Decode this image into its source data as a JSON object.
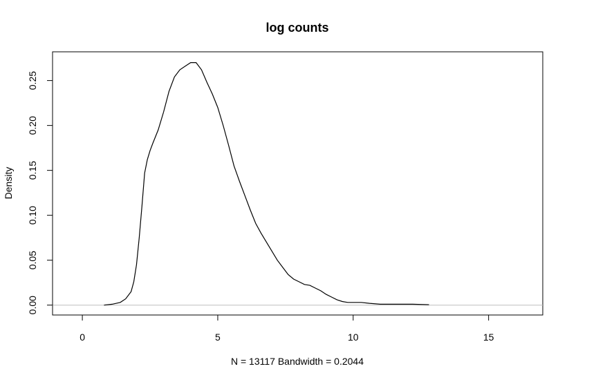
{
  "chart_data": {
    "type": "line",
    "title": "log counts",
    "xlabel": "N = 13117   Bandwidth = 0.2044",
    "ylabel": "Density",
    "xlim": [
      -1.1,
      17.0
    ],
    "ylim": [
      -0.011,
      0.282
    ],
    "x_ticks": [
      {
        "value": 0,
        "label": "0"
      },
      {
        "value": 5,
        "label": "5"
      },
      {
        "value": 10,
        "label": "10"
      },
      {
        "value": 15,
        "label": "15"
      }
    ],
    "y_ticks": [
      {
        "value": 0.0,
        "label": "0.00"
      },
      {
        "value": 0.05,
        "label": "0.05"
      },
      {
        "value": 0.1,
        "label": "0.10"
      },
      {
        "value": 0.15,
        "label": "0.15"
      },
      {
        "value": 0.2,
        "label": "0.20"
      },
      {
        "value": 0.25,
        "label": "0.25"
      }
    ],
    "baseline": {
      "value": 0,
      "color": "#bebebe"
    },
    "grid": false,
    "line_color": "#000000",
    "series": [
      {
        "x": [
          0.8,
          1.1,
          1.4,
          1.6,
          1.8,
          1.9,
          2.0,
          2.1,
          2.2,
          2.3,
          2.4,
          2.5,
          2.6,
          2.8,
          3.0,
          3.2,
          3.4,
          3.6,
          3.8,
          4.0,
          4.2,
          4.4,
          4.6,
          4.8,
          5.0,
          5.2,
          5.4,
          5.6,
          5.8,
          6.0,
          6.2,
          6.4,
          6.6,
          6.8,
          7.0,
          7.2,
          7.4,
          7.6,
          7.8,
          8.0,
          8.2,
          8.4,
          8.6,
          8.8,
          9.0,
          9.2,
          9.4,
          9.6,
          9.8,
          10.0,
          10.3,
          10.6,
          11.0,
          11.4,
          11.8,
          12.2,
          12.8
        ],
        "y": [
          0.0,
          0.001,
          0.003,
          0.007,
          0.015,
          0.026,
          0.045,
          0.075,
          0.11,
          0.147,
          0.162,
          0.172,
          0.18,
          0.195,
          0.215,
          0.238,
          0.254,
          0.262,
          0.266,
          0.27,
          0.27,
          0.262,
          0.248,
          0.235,
          0.22,
          0.2,
          0.178,
          0.155,
          0.138,
          0.122,
          0.106,
          0.091,
          0.08,
          0.07,
          0.06,
          0.05,
          0.042,
          0.034,
          0.029,
          0.026,
          0.023,
          0.022,
          0.019,
          0.016,
          0.012,
          0.009,
          0.006,
          0.004,
          0.003,
          0.003,
          0.003,
          0.002,
          0.001,
          0.001,
          0.001,
          0.001,
          0.0005
        ]
      }
    ]
  }
}
